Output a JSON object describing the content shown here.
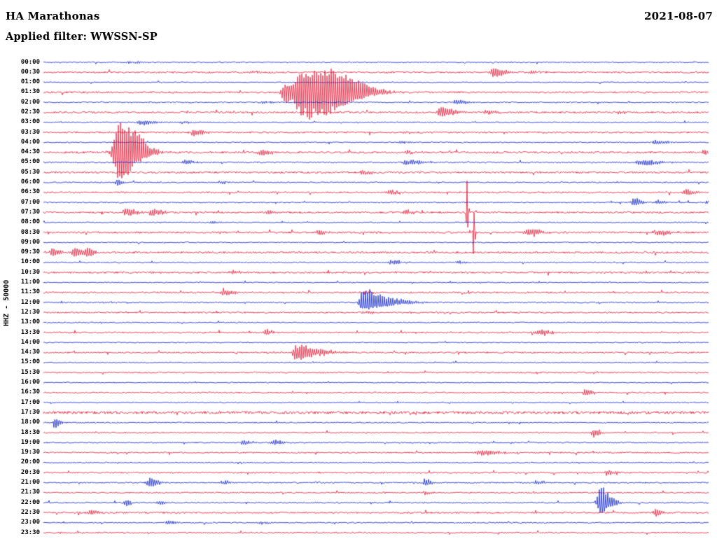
{
  "header": {
    "station": "HA Marathonas",
    "date": "2021-08-07",
    "filter_label": "Applied filter: WWSSN-SP"
  },
  "chart_data": {
    "type": "helicorder",
    "title": "HA Marathonas",
    "subtitle": "Applied filter: WWSSN-SP",
    "date": "2021-08-07",
    "y_axis_label": "HHZ - 50000",
    "minutes_per_row": 30,
    "legend_position": "none",
    "grid": false,
    "row_labels": [
      "00:00",
      "00:30",
      "01:00",
      "01:30",
      "02:00",
      "02:30",
      "03:00",
      "03:30",
      "04:00",
      "04:30",
      "05:00",
      "05:30",
      "06:00",
      "06:30",
      "07:00",
      "07:30",
      "08:00",
      "08:30",
      "09:00",
      "09:30",
      "10:00",
      "10:30",
      "11:00",
      "11:30",
      "12:00",
      "12:30",
      "13:00",
      "13:30",
      "14:00",
      "14:30",
      "15:00",
      "15:30",
      "16:00",
      "16:30",
      "17:00",
      "17:30",
      "18:00",
      "18:30",
      "19:00",
      "19:30",
      "20:00",
      "20:30",
      "21:00",
      "21:30",
      "22:00",
      "22:30",
      "23:00",
      "23:30"
    ],
    "colors": {
      "even_hex": "#0018cc",
      "odd_hex": "#e50f2d",
      "text_hex": "#000000",
      "background_hex": "#ffffff"
    },
    "noise_amp": [
      0.7,
      1.1,
      0.7,
      1.2,
      0.8,
      1.2,
      0.8,
      1.1,
      0.7,
      1.3,
      0.9,
      1.3,
      0.8,
      1.1,
      0.8,
      1.2,
      0.7,
      1.2,
      0.7,
      1.3,
      0.8,
      1.2,
      0.7,
      1.1,
      0.8,
      1.0,
      0.7,
      1.0,
      0.7,
      1.0,
      0.7,
      0.9,
      0.7,
      0.9,
      0.7,
      1.8,
      0.8,
      0.9,
      0.8,
      1.0,
      0.7,
      1.0,
      0.9,
      0.9,
      0.9,
      1.1,
      0.8,
      0.9
    ],
    "events": [
      {
        "row": 0,
        "t": 3.9,
        "amp": 2,
        "attack": 0.1,
        "decay": 0.4
      },
      {
        "row": 1,
        "t": 9.4,
        "amp": 2,
        "attack": 0.1,
        "decay": 0.3
      },
      {
        "row": 1,
        "t": 20.3,
        "amp": 7,
        "attack": 0.12,
        "decay": 0.5
      },
      {
        "row": 1,
        "t": 22.0,
        "amp": 2.5,
        "attack": 0.1,
        "decay": 0.4
      },
      {
        "row": 3,
        "t": 10.9,
        "amp": 18,
        "attack": 0.12,
        "decay": 0.25
      },
      {
        "row": 3,
        "t": 11.7,
        "amp": 45,
        "attack": 0.25,
        "decay": 1.5
      },
      {
        "row": 3,
        "t": 13.2,
        "amp": 10,
        "attack": 0.4,
        "decay": 1.2
      },
      {
        "row": 4,
        "t": 9.9,
        "amp": 2,
        "attack": 0.1,
        "decay": 0.3
      },
      {
        "row": 4,
        "t": 18.6,
        "amp": 4,
        "attack": 0.1,
        "decay": 0.4
      },
      {
        "row": 5,
        "t": 17.9,
        "amp": 9,
        "attack": 0.12,
        "decay": 0.5
      },
      {
        "row": 5,
        "t": 20.0,
        "amp": 4,
        "attack": 0.1,
        "decay": 0.4
      },
      {
        "row": 5,
        "t": 26.0,
        "amp": 2.5,
        "attack": 0.1,
        "decay": 0.3
      },
      {
        "row": 6,
        "t": 4.4,
        "amp": 4,
        "attack": 0.15,
        "decay": 0.5
      },
      {
        "row": 6,
        "t": 6.3,
        "amp": 2.5,
        "attack": 0.1,
        "decay": 0.3
      },
      {
        "row": 7,
        "t": 6.8,
        "amp": 6,
        "attack": 0.1,
        "decay": 0.35
      },
      {
        "row": 7,
        "t": 16.3,
        "amp": 2,
        "attack": 0.1,
        "decay": 0.3
      },
      {
        "row": 8,
        "t": 16.2,
        "amp": 2.5,
        "attack": 0.1,
        "decay": 0.3
      },
      {
        "row": 8,
        "t": 27.6,
        "amp": 3.5,
        "attack": 0.12,
        "decay": 0.5
      },
      {
        "row": 9,
        "t": 3.4,
        "amp": 52,
        "attack": 0.18,
        "decay": 0.8
      },
      {
        "row": 9,
        "t": 9.8,
        "amp": 4,
        "attack": 0.12,
        "decay": 0.5
      },
      {
        "row": 9,
        "t": 16.4,
        "amp": 3,
        "attack": 0.1,
        "decay": 0.4
      },
      {
        "row": 9,
        "t": 29.8,
        "amp": 5,
        "attack": 0.08,
        "decay": 0.2
      },
      {
        "row": 10,
        "t": 6.4,
        "amp": 3,
        "attack": 0.1,
        "decay": 0.4
      },
      {
        "row": 10,
        "t": 16.4,
        "amp": 4,
        "attack": 0.2,
        "decay": 0.7
      },
      {
        "row": 10,
        "t": 27.0,
        "amp": 4.5,
        "attack": 0.2,
        "decay": 0.7
      },
      {
        "row": 11,
        "t": 14.4,
        "amp": 3,
        "attack": 0.1,
        "decay": 0.4
      },
      {
        "row": 12,
        "t": 3.3,
        "amp": 6,
        "attack": 0.06,
        "decay": 0.2
      },
      {
        "row": 12,
        "t": 8.0,
        "amp": 3,
        "attack": 0.1,
        "decay": 0.3
      },
      {
        "row": 13,
        "t": 15.6,
        "amp": 4,
        "attack": 0.1,
        "decay": 0.4
      },
      {
        "row": 13,
        "t": 28.9,
        "amp": 5,
        "attack": 0.1,
        "decay": 0.4
      },
      {
        "row": 14,
        "t": 26.6,
        "amp": 9,
        "attack": 0.06,
        "decay": 0.25
      },
      {
        "row": 14,
        "t": 27.7,
        "amp": 4,
        "attack": 0.08,
        "decay": 0.3
      },
      {
        "row": 14,
        "t": 29.9,
        "amp": 4,
        "attack": 0.06,
        "decay": 0.2
      },
      {
        "row": 15,
        "t": 3.7,
        "amp": 7,
        "attack": 0.1,
        "decay": 0.4
      },
      {
        "row": 15,
        "t": 4.9,
        "amp": 7,
        "attack": 0.1,
        "decay": 0.4
      },
      {
        "row": 15,
        "t": 10.1,
        "amp": 3,
        "attack": 0.1,
        "decay": 0.3
      },
      {
        "row": 15,
        "t": 16.3,
        "amp": 4,
        "attack": 0.1,
        "decay": 0.35
      },
      {
        "row": 15,
        "t": 19.1,
        "amp": 55,
        "attack": 0.03,
        "decay": 0.05
      },
      {
        "row": 16,
        "t": 7.6,
        "amp": 2.5,
        "attack": 0.1,
        "decay": 0.3
      },
      {
        "row": 17,
        "t": 12.4,
        "amp": 4,
        "attack": 0.1,
        "decay": 0.35
      },
      {
        "row": 17,
        "t": 19.4,
        "amp": 48,
        "attack": 0.03,
        "decay": 0.05
      },
      {
        "row": 17,
        "t": 21.9,
        "amp": 6,
        "attack": 0.15,
        "decay": 0.5
      },
      {
        "row": 17,
        "t": 27.7,
        "amp": 5,
        "attack": 0.15,
        "decay": 0.5
      },
      {
        "row": 19,
        "t": 0.4,
        "amp": 7,
        "attack": 0.1,
        "decay": 0.3
      },
      {
        "row": 19,
        "t": 1.4,
        "amp": 8,
        "attack": 0.1,
        "decay": 0.3
      },
      {
        "row": 19,
        "t": 2.0,
        "amp": 7,
        "attack": 0.1,
        "decay": 0.25
      },
      {
        "row": 20,
        "t": 15.7,
        "amp": 4,
        "attack": 0.1,
        "decay": 0.4
      },
      {
        "row": 20,
        "t": 18.7,
        "amp": 3,
        "attack": 0.1,
        "decay": 0.3
      },
      {
        "row": 21,
        "t": 8.5,
        "amp": 3,
        "attack": 0.1,
        "decay": 0.3
      },
      {
        "row": 23,
        "t": 8.1,
        "amp": 5,
        "attack": 0.1,
        "decay": 0.35
      },
      {
        "row": 23,
        "t": 14.5,
        "amp": 3,
        "attack": 0.1,
        "decay": 0.3
      },
      {
        "row": 24,
        "t": 14.4,
        "amp": 22,
        "attack": 0.12,
        "decay": 0.5
      },
      {
        "row": 24,
        "t": 15.3,
        "amp": 8,
        "attack": 0.3,
        "decay": 0.9
      },
      {
        "row": 25,
        "t": 14.5,
        "amp": 2,
        "attack": 0.1,
        "decay": 0.4
      },
      {
        "row": 27,
        "t": 10.0,
        "amp": 6,
        "attack": 0.08,
        "decay": 0.25
      },
      {
        "row": 27,
        "t": 22.4,
        "amp": 5,
        "attack": 0.15,
        "decay": 0.45
      },
      {
        "row": 29,
        "t": 11.4,
        "amp": 14,
        "attack": 0.12,
        "decay": 0.45
      },
      {
        "row": 29,
        "t": 12.2,
        "amp": 5,
        "attack": 0.3,
        "decay": 0.8
      },
      {
        "row": 33,
        "t": 24.4,
        "amp": 7,
        "attack": 0.06,
        "decay": 0.25
      },
      {
        "row": 36,
        "t": 0.5,
        "amp": 9,
        "attack": 0.05,
        "decay": 0.2
      },
      {
        "row": 37,
        "t": 24.8,
        "amp": 8,
        "attack": 0.06,
        "decay": 0.25
      },
      {
        "row": 38,
        "t": 9.0,
        "amp": 4,
        "attack": 0.08,
        "decay": 0.3
      },
      {
        "row": 38,
        "t": 10.4,
        "amp": 5,
        "attack": 0.08,
        "decay": 0.3
      },
      {
        "row": 39,
        "t": 19.8,
        "amp": 5,
        "attack": 0.2,
        "decay": 0.6
      },
      {
        "row": 41,
        "t": 25.4,
        "amp": 4,
        "attack": 0.1,
        "decay": 0.35
      },
      {
        "row": 42,
        "t": 4.8,
        "amp": 9,
        "attack": 0.1,
        "decay": 0.3
      },
      {
        "row": 42,
        "t": 8.1,
        "amp": 3,
        "attack": 0.1,
        "decay": 0.3
      },
      {
        "row": 42,
        "t": 17.2,
        "amp": 8,
        "attack": 0.05,
        "decay": 0.2
      },
      {
        "row": 42,
        "t": 22.2,
        "amp": 3,
        "attack": 0.1,
        "decay": 0.3
      },
      {
        "row": 43,
        "t": 17.2,
        "amp": 3,
        "attack": 0.08,
        "decay": 0.25
      },
      {
        "row": 44,
        "t": 3.7,
        "amp": 6,
        "attack": 0.06,
        "decay": 0.2
      },
      {
        "row": 44,
        "t": 5.2,
        "amp": 3,
        "attack": 0.1,
        "decay": 0.3
      },
      {
        "row": 44,
        "t": 25.1,
        "amp": 25,
        "attack": 0.1,
        "decay": 0.4
      },
      {
        "row": 45,
        "t": 2.1,
        "amp": 4,
        "attack": 0.15,
        "decay": 0.4
      },
      {
        "row": 45,
        "t": 27.6,
        "amp": 8,
        "attack": 0.06,
        "decay": 0.2
      },
      {
        "row": 46,
        "t": 5.6,
        "amp": 3,
        "attack": 0.1,
        "decay": 0.3
      },
      {
        "row": 46,
        "t": 9.8,
        "amp": 2.5,
        "attack": 0.1,
        "decay": 0.3
      }
    ]
  }
}
